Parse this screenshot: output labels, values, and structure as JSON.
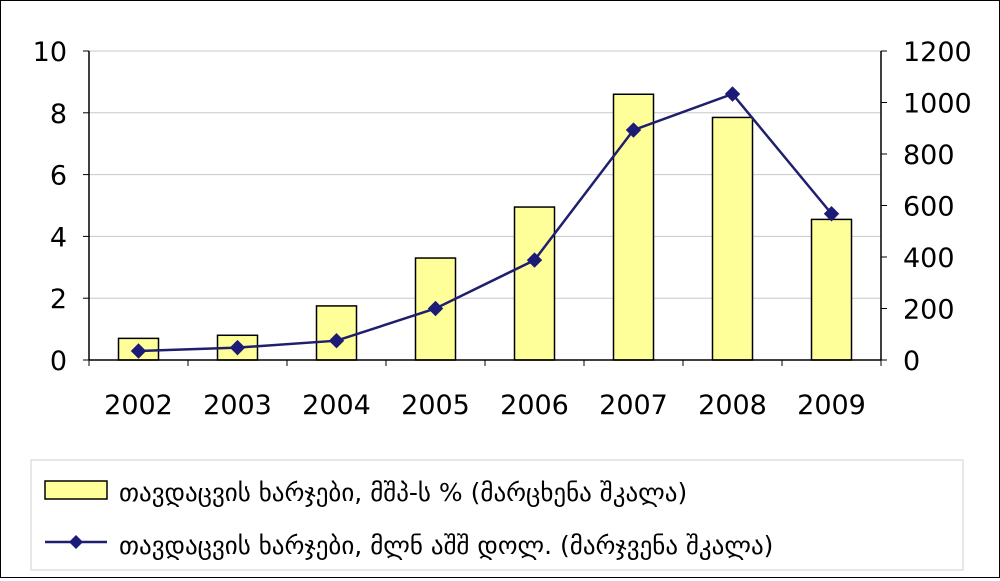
{
  "chart_data": {
    "type": "bar+line",
    "categories": [
      "2002",
      "2003",
      "2004",
      "2005",
      "2006",
      "2007",
      "2008",
      "2009"
    ],
    "series": [
      {
        "name": "თავდაცვის ხარჯები, მშპ-ს % (მარცხენა შკალა)",
        "type": "bar",
        "axis": "left",
        "values": [
          0.7,
          0.8,
          1.75,
          3.3,
          4.95,
          8.6,
          7.85,
          4.55
        ]
      },
      {
        "name": "თავდაცვის ხარჯები, მლნ აშშ დოლ. (მარჯვენა შკალა)",
        "type": "line",
        "axis": "right",
        "values": [
          35,
          48,
          75,
          200,
          388,
          893,
          1033,
          568
        ]
      }
    ],
    "y_left": {
      "min": 0,
      "max": 10,
      "ticks": [
        "0",
        "2",
        "4",
        "6",
        "8",
        "10"
      ]
    },
    "y_right": {
      "min": 0,
      "max": 1200,
      "ticks": [
        "0",
        "200",
        "400",
        "600",
        "800",
        "1000",
        "1200"
      ]
    },
    "grid": true,
    "legend_position": "bottom",
    "colors": {
      "bar_fill": "#ffff99",
      "bar_stroke": "#000000",
      "line": "#1f1f6e",
      "marker": "#1c1c78",
      "grid": "#c8c8c8",
      "plot_background": "#ffffff"
    }
  }
}
